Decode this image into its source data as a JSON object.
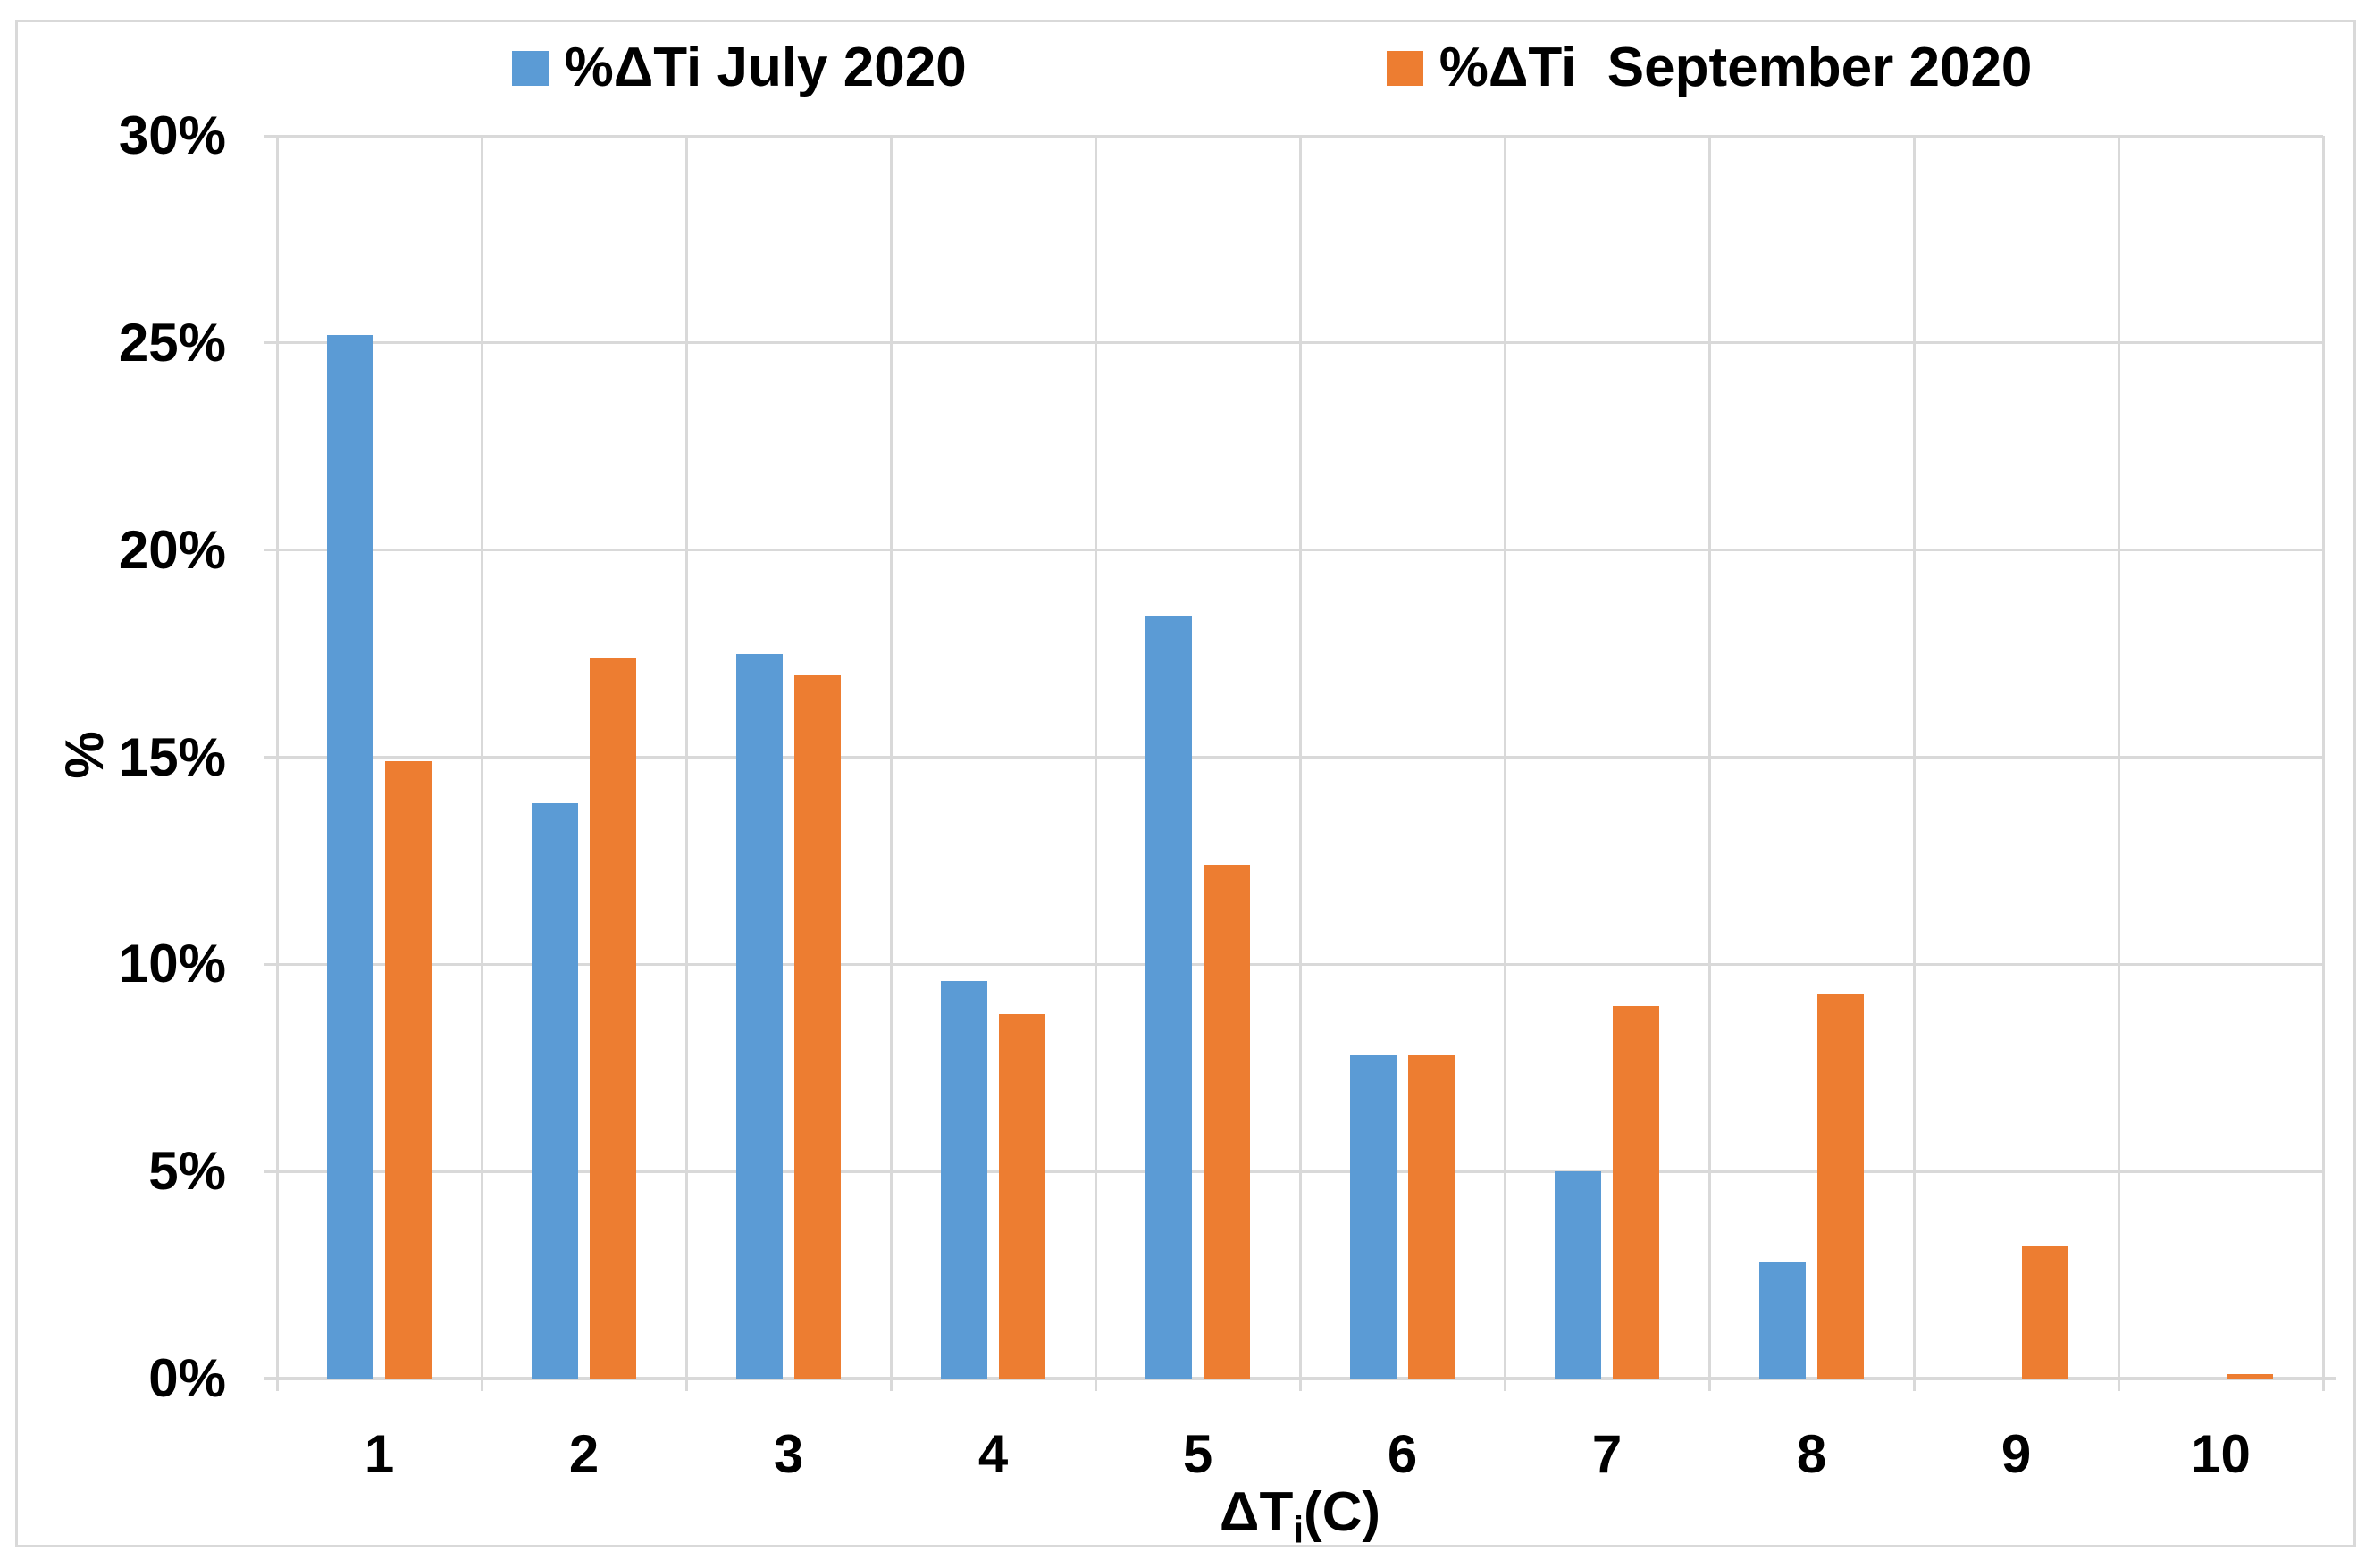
{
  "chart_data": {
    "type": "bar",
    "title": "",
    "categories": [
      "1",
      "2",
      "3",
      "4",
      "5",
      "6",
      "7",
      "8",
      "9",
      "10"
    ],
    "series": [
      {
        "name": "%ΔTi July 2020",
        "color": "#5B9BD5",
        "values": [
          25.2,
          13.9,
          17.5,
          9.6,
          18.4,
          7.8,
          5.0,
          2.8,
          0,
          0
        ]
      },
      {
        "name": "%ΔTi  September 2020",
        "color": "#ED7D31",
        "values": [
          14.9,
          17.4,
          17.0,
          8.8,
          12.4,
          7.8,
          9.0,
          9.3,
          3.2,
          0.1
        ]
      }
    ],
    "xlabel": {
      "main": "ΔT",
      "sub": "i",
      "suffix": "(C)"
    },
    "ylabel": "%",
    "ylim": [
      0,
      30
    ],
    "ytick_values": [
      30,
      25,
      20,
      15,
      10,
      5,
      0
    ],
    "yticks": [
      "30%",
      "25%",
      "20%",
      "15%",
      "10%",
      "5%",
      "0%"
    ],
    "grid": true,
    "legend_position": "top",
    "colors": {
      "gridline": "#D9D9D9",
      "border": "#D9D9D9",
      "text": "#000000",
      "background": "#FFFFFF"
    }
  }
}
